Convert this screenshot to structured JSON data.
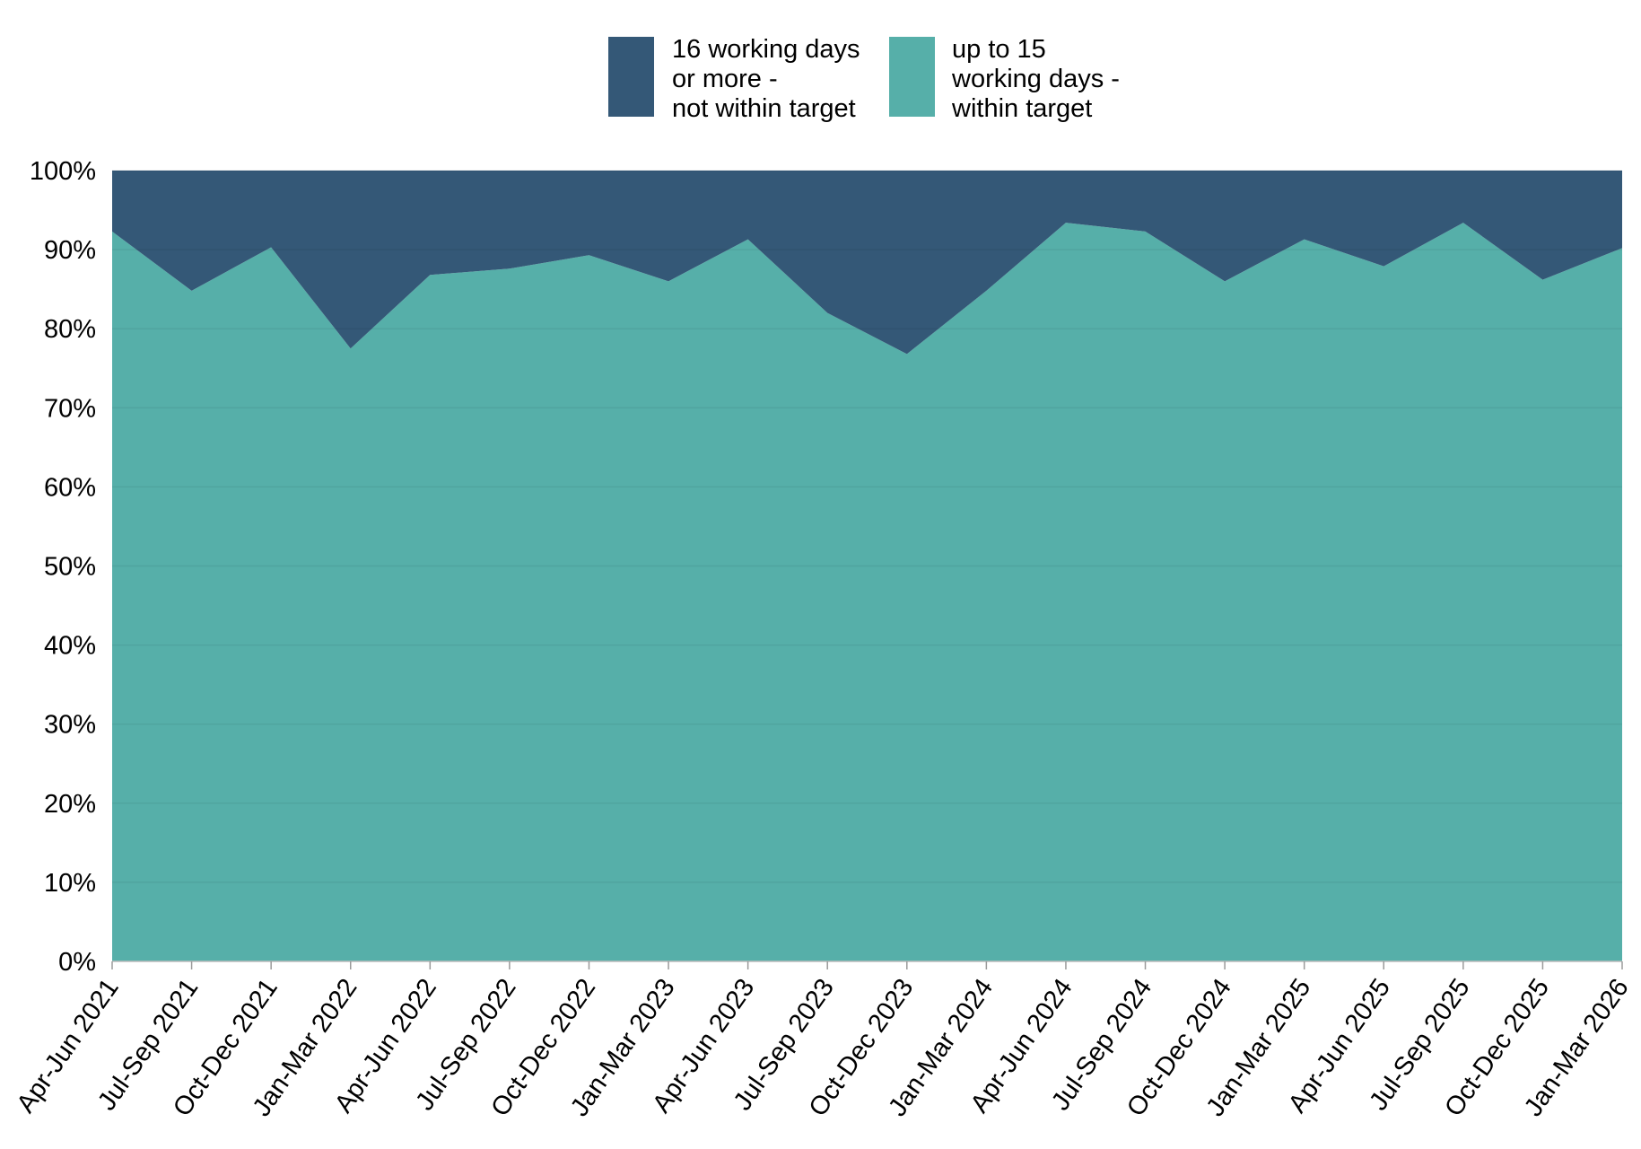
{
  "chart_data": {
    "type": "area",
    "stacked": true,
    "percent": true,
    "categories": [
      "Apr-Jun 2021",
      "Jul-Sep 2021",
      "Oct-Dec 2021",
      "Jan-Mar 2022",
      "Apr-Jun 2022",
      "Jul-Sep 2022",
      "Oct-Dec 2022",
      "Jan-Mar 2023",
      "Apr-Jun 2023",
      "Jul-Sep 2023",
      "Oct-Dec 2023",
      "Jan-Mar 2024",
      "Apr-Jun 2024",
      "Jul-Sep 2024",
      "Oct-Dec 2024",
      "Jan-Mar 2025",
      "Apr-Jun 2025",
      "Jul-Sep 2025",
      "Oct-Dec 2025",
      "Jan-Mar 2026"
    ],
    "series": [
      {
        "name": "up to 15 working days - within target",
        "legend_lines": [
          "up to 15",
          "working days -",
          "within target"
        ],
        "color": "#56AFA9",
        "values": [
          92.3,
          84.8,
          90.3,
          77.5,
          86.8,
          87.6,
          89.3,
          86.0,
          91.3,
          82.0,
          76.8,
          84.8,
          93.4,
          92.3,
          86.0,
          91.3,
          87.9,
          93.4,
          86.2,
          90.2
        ]
      },
      {
        "name": "16 working days or more - not within target",
        "legend_lines": [
          "16 working days",
          "or more -",
          "not within target"
        ],
        "color": "#345877",
        "values": [
          7.7,
          15.2,
          9.7,
          22.5,
          13.2,
          12.4,
          10.7,
          14.0,
          8.7,
          18.0,
          23.2,
          15.2,
          6.6,
          7.7,
          14.0,
          8.7,
          12.1,
          6.6,
          13.8,
          9.8
        ]
      }
    ],
    "legend_order": [
      1,
      0
    ],
    "legend_position": "top",
    "ylim": [
      0,
      100
    ],
    "yticks": [
      "0%",
      "10%",
      "20%",
      "30%",
      "40%",
      "50%",
      "60%",
      "70%",
      "80%",
      "90%",
      "100%"
    ],
    "grid": "horizontal",
    "xlabel": "",
    "ylabel": ""
  }
}
